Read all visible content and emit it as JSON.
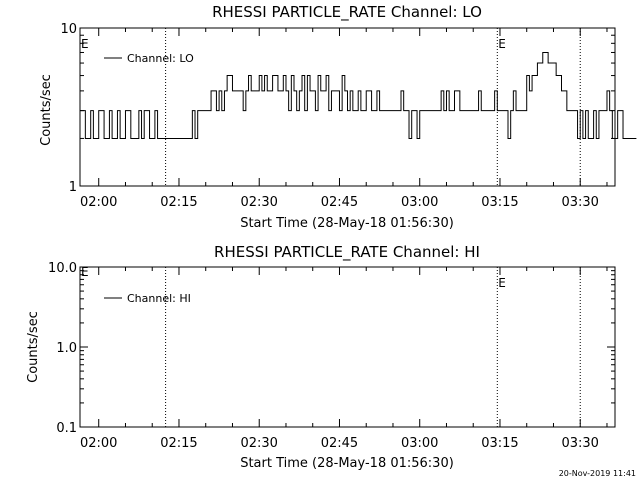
{
  "footer_timestamp": "20-Nov-2019 11:41",
  "chart_data": [
    {
      "type": "line",
      "title": "RHESSI PARTICLE_RATE Channel: LO",
      "xlabel": "Start Time (28-May-18 01:56:30)",
      "ylabel": "Counts/sec",
      "y_scale": "log",
      "ylim": [
        1,
        10
      ],
      "y_ticks": [
        1,
        10
      ],
      "y_tick_labels": [
        "1",
        "10"
      ],
      "xlim": [
        "01:56:30",
        "03:36:30"
      ],
      "x_ticks": [
        "02:00",
        "02:15",
        "02:30",
        "02:45",
        "03:00",
        "03:15",
        "03:30"
      ],
      "legend": {
        "position": "top-left",
        "entries": [
          "Channel: LO"
        ]
      },
      "event_markers": [
        {
          "time": "02:12:30",
          "label": ""
        },
        {
          "time": "03:14:30",
          "label": "E"
        },
        {
          "time": "03:30:00",
          "label": ""
        }
      ],
      "edge_labels": [
        "E"
      ],
      "series": [
        {
          "name": "Channel: LO",
          "step_minutes": 0.5,
          "x_start": "01:56:30",
          "values": [
            3,
            3,
            2,
            2,
            3,
            2,
            2,
            3,
            3,
            2,
            2,
            3,
            2,
            2,
            3,
            2,
            2,
            3,
            3,
            2,
            2,
            2,
            3,
            2,
            3,
            3,
            2,
            2,
            3,
            2,
            2,
            2,
            2,
            2,
            2,
            2,
            2,
            2,
            2,
            2,
            2,
            2,
            3,
            2,
            3,
            3,
            3,
            3,
            3,
            4,
            4,
            3,
            4,
            3,
            4,
            5,
            5,
            4,
            4,
            4,
            4,
            3,
            4,
            5,
            4,
            4,
            4,
            5,
            4,
            5,
            4,
            4,
            5,
            5,
            4,
            4,
            5,
            4,
            3,
            5,
            4,
            3,
            4,
            5,
            3,
            5,
            4,
            4,
            3,
            5,
            4,
            4,
            5,
            3,
            4,
            4,
            4,
            3,
            5,
            4,
            3,
            4,
            3,
            3,
            4,
            3,
            3,
            4,
            4,
            3,
            3,
            4,
            3,
            3,
            3,
            3,
            3,
            3,
            3,
            3,
            4,
            3,
            3,
            2,
            3,
            3,
            2,
            3,
            3,
            3,
            3,
            3,
            3,
            3,
            3,
            4,
            3,
            4,
            3,
            3,
            4,
            4,
            3,
            3,
            3,
            3,
            3,
            3,
            3,
            4,
            3,
            3,
            3,
            3,
            3,
            4,
            3,
            3,
            3,
            3,
            2,
            3,
            4,
            3,
            3,
            3,
            3,
            5,
            4,
            5,
            5,
            6,
            6,
            7,
            7,
            6,
            6,
            6,
            5,
            5,
            4,
            4,
            3,
            3,
            3,
            3,
            2,
            3,
            2,
            3,
            2,
            2,
            3,
            2,
            3,
            3,
            3,
            4,
            3,
            2,
            2,
            3,
            3,
            2,
            2,
            2,
            2,
            2
          ]
        }
      ]
    },
    {
      "type": "line",
      "title": "RHESSI PARTICLE_RATE Channel: HI",
      "xlabel": "Start Time (28-May-18 01:56:30)",
      "ylabel": "Counts/sec",
      "y_scale": "log",
      "ylim": [
        0.1,
        10
      ],
      "y_ticks": [
        0.1,
        1,
        10
      ],
      "y_tick_labels": [
        "0.1",
        "1.0",
        "10.0"
      ],
      "xlim": [
        "01:56:30",
        "03:36:30"
      ],
      "x_ticks": [
        "02:00",
        "02:15",
        "02:30",
        "02:45",
        "03:00",
        "03:15",
        "03:30"
      ],
      "legend": {
        "position": "top-left",
        "entries": [
          "Channel: HI"
        ]
      },
      "event_markers": [
        {
          "time": "02:12:30",
          "label": ""
        },
        {
          "time": "03:14:30",
          "label": "E"
        },
        {
          "time": "03:30:00",
          "label": ""
        }
      ],
      "edge_labels": [
        "E"
      ],
      "series": [
        {
          "name": "Channel: HI",
          "step_minutes": 0.5,
          "x_start": "01:56:30",
          "values": []
        }
      ]
    }
  ]
}
